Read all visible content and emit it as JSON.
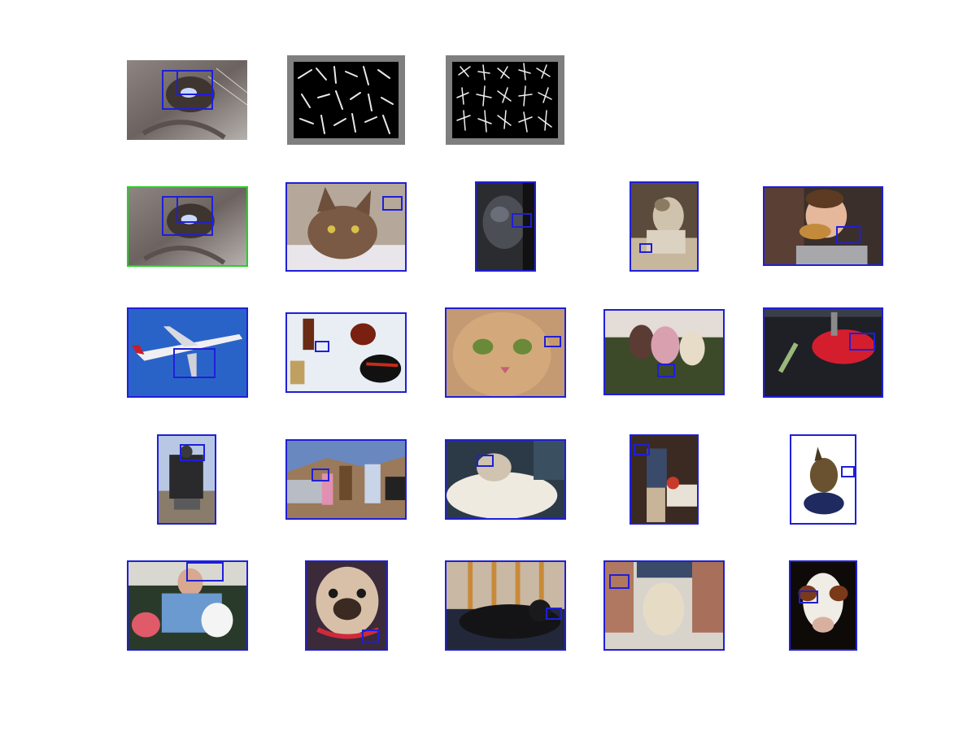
{
  "figure": {
    "background": "#ffffff",
    "accent_blue": "#1f1fd8",
    "accent_green": "#21d321",
    "query": {
      "content": "cat-eye-closeup",
      "hog_panels": [
        "hog-visualization-left",
        "hog-visualization-right"
      ]
    },
    "results": [
      {
        "content": "cat-eye-closeup",
        "frame": "green"
      },
      {
        "content": "brown-cat-lying",
        "frame": "blue"
      },
      {
        "content": "black-dog",
        "frame": "blue"
      },
      {
        "content": "puppy-sitting",
        "frame": "blue"
      },
      {
        "content": "boy-eating-burger",
        "frame": "blue"
      },
      {
        "content": "airplane-sky",
        "frame": "blue"
      },
      {
        "content": "table-bottles",
        "frame": "blue"
      },
      {
        "content": "cat-face-closeup",
        "frame": "blue"
      },
      {
        "content": "three-people-couch",
        "frame": "blue"
      },
      {
        "content": "hummingbird-feeder",
        "frame": "blue"
      },
      {
        "content": "steam-locomotive",
        "frame": "blue"
      },
      {
        "content": "people-desert-car",
        "frame": "blue"
      },
      {
        "content": "dog-on-blanket",
        "frame": "blue"
      },
      {
        "content": "man-at-table",
        "frame": "blue"
      },
      {
        "content": "yorkie-dog",
        "frame": "blue"
      },
      {
        "content": "man-baby-dog",
        "frame": "blue"
      },
      {
        "content": "pug-dog",
        "frame": "blue"
      },
      {
        "content": "black-cat-chair",
        "frame": "blue"
      },
      {
        "content": "fluffy-dog-legs",
        "frame": "blue"
      },
      {
        "content": "cow-face",
        "frame": "blue"
      }
    ]
  }
}
